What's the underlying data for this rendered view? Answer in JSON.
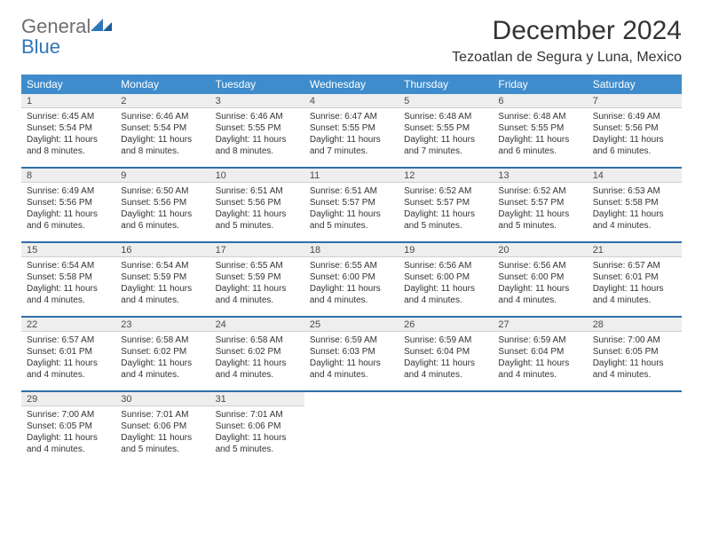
{
  "logo": {
    "word1": "General",
    "word2": "Blue"
  },
  "title": "December 2024",
  "location": "Tezoatlan de Segura y Luna, Mexico",
  "colors": {
    "header_bg": "#3e8ccc",
    "daynum_bg": "#eeeeee",
    "divider": "#2f6fa8",
    "logo_gray": "#6f6f6f",
    "logo_blue": "#2f76b9"
  },
  "dow": [
    "Sunday",
    "Monday",
    "Tuesday",
    "Wednesday",
    "Thursday",
    "Friday",
    "Saturday"
  ],
  "weeks": [
    [
      {
        "n": "1",
        "sr": "6:45 AM",
        "ss": "5:54 PM",
        "dl": "11 hours and 8 minutes."
      },
      {
        "n": "2",
        "sr": "6:46 AM",
        "ss": "5:54 PM",
        "dl": "11 hours and 8 minutes."
      },
      {
        "n": "3",
        "sr": "6:46 AM",
        "ss": "5:55 PM",
        "dl": "11 hours and 8 minutes."
      },
      {
        "n": "4",
        "sr": "6:47 AM",
        "ss": "5:55 PM",
        "dl": "11 hours and 7 minutes."
      },
      {
        "n": "5",
        "sr": "6:48 AM",
        "ss": "5:55 PM",
        "dl": "11 hours and 7 minutes."
      },
      {
        "n": "6",
        "sr": "6:48 AM",
        "ss": "5:55 PM",
        "dl": "11 hours and 6 minutes."
      },
      {
        "n": "7",
        "sr": "6:49 AM",
        "ss": "5:56 PM",
        "dl": "11 hours and 6 minutes."
      }
    ],
    [
      {
        "n": "8",
        "sr": "6:49 AM",
        "ss": "5:56 PM",
        "dl": "11 hours and 6 minutes."
      },
      {
        "n": "9",
        "sr": "6:50 AM",
        "ss": "5:56 PM",
        "dl": "11 hours and 6 minutes."
      },
      {
        "n": "10",
        "sr": "6:51 AM",
        "ss": "5:56 PM",
        "dl": "11 hours and 5 minutes."
      },
      {
        "n": "11",
        "sr": "6:51 AM",
        "ss": "5:57 PM",
        "dl": "11 hours and 5 minutes."
      },
      {
        "n": "12",
        "sr": "6:52 AM",
        "ss": "5:57 PM",
        "dl": "11 hours and 5 minutes."
      },
      {
        "n": "13",
        "sr": "6:52 AM",
        "ss": "5:57 PM",
        "dl": "11 hours and 5 minutes."
      },
      {
        "n": "14",
        "sr": "6:53 AM",
        "ss": "5:58 PM",
        "dl": "11 hours and 4 minutes."
      }
    ],
    [
      {
        "n": "15",
        "sr": "6:54 AM",
        "ss": "5:58 PM",
        "dl": "11 hours and 4 minutes."
      },
      {
        "n": "16",
        "sr": "6:54 AM",
        "ss": "5:59 PM",
        "dl": "11 hours and 4 minutes."
      },
      {
        "n": "17",
        "sr": "6:55 AM",
        "ss": "5:59 PM",
        "dl": "11 hours and 4 minutes."
      },
      {
        "n": "18",
        "sr": "6:55 AM",
        "ss": "6:00 PM",
        "dl": "11 hours and 4 minutes."
      },
      {
        "n": "19",
        "sr": "6:56 AM",
        "ss": "6:00 PM",
        "dl": "11 hours and 4 minutes."
      },
      {
        "n": "20",
        "sr": "6:56 AM",
        "ss": "6:00 PM",
        "dl": "11 hours and 4 minutes."
      },
      {
        "n": "21",
        "sr": "6:57 AM",
        "ss": "6:01 PM",
        "dl": "11 hours and 4 minutes."
      }
    ],
    [
      {
        "n": "22",
        "sr": "6:57 AM",
        "ss": "6:01 PM",
        "dl": "11 hours and 4 minutes."
      },
      {
        "n": "23",
        "sr": "6:58 AM",
        "ss": "6:02 PM",
        "dl": "11 hours and 4 minutes."
      },
      {
        "n": "24",
        "sr": "6:58 AM",
        "ss": "6:02 PM",
        "dl": "11 hours and 4 minutes."
      },
      {
        "n": "25",
        "sr": "6:59 AM",
        "ss": "6:03 PM",
        "dl": "11 hours and 4 minutes."
      },
      {
        "n": "26",
        "sr": "6:59 AM",
        "ss": "6:04 PM",
        "dl": "11 hours and 4 minutes."
      },
      {
        "n": "27",
        "sr": "6:59 AM",
        "ss": "6:04 PM",
        "dl": "11 hours and 4 minutes."
      },
      {
        "n": "28",
        "sr": "7:00 AM",
        "ss": "6:05 PM",
        "dl": "11 hours and 4 minutes."
      }
    ],
    [
      {
        "n": "29",
        "sr": "7:00 AM",
        "ss": "6:05 PM",
        "dl": "11 hours and 4 minutes."
      },
      {
        "n": "30",
        "sr": "7:01 AM",
        "ss": "6:06 PM",
        "dl": "11 hours and 5 minutes."
      },
      {
        "n": "31",
        "sr": "7:01 AM",
        "ss": "6:06 PM",
        "dl": "11 hours and 5 minutes."
      },
      null,
      null,
      null,
      null
    ]
  ],
  "labels": {
    "sunrise": "Sunrise:",
    "sunset": "Sunset:",
    "daylight": "Daylight:"
  }
}
